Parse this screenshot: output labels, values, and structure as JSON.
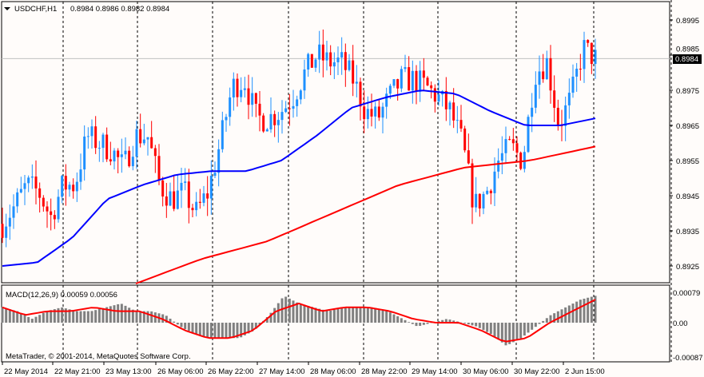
{
  "header": {
    "symbol": "USDCHF,H1",
    "ohlc": "0.8984 0.8986 0.8982 0.8984"
  },
  "macd_label": "MACD(12,26,9) 0.00059 0.00056",
  "copyright": "MetaTrader, © 2001-2014, MetaQuotes Software Corp.",
  "current_price": "0.8984",
  "colors": {
    "bull": "#1e90ff",
    "bear": "#ff0000",
    "ma_fast": "#0000ff",
    "ma_slow": "#ff0000",
    "hist": "#808080"
  },
  "chart_data": [
    {
      "type": "candlestick",
      "title": "USDCHF,H1",
      "ylim": [
        0.8917,
        0.9
      ],
      "yticks": [
        "0.8995",
        "0.8985",
        "0.8975",
        "0.8965",
        "0.8955",
        "0.8945",
        "0.8935",
        "0.8925"
      ],
      "xticks": [
        "22 May 2014",
        "22 May 21:00",
        "23 May 13:00",
        "26 May 06:00",
        "26 May 22:00",
        "27 May 14:00",
        "28 May 06:00",
        "28 May 22:00",
        "29 May 14:00",
        "30 May 06:00",
        "30 May 22:00",
        "2 Jun 15:00"
      ],
      "closes": [
        0.8937,
        0.8942,
        0.8948,
        0.8946,
        0.8939,
        0.8948,
        0.8948,
        0.8962,
        0.896,
        0.8958,
        0.8953,
        0.8962,
        0.8962,
        0.8948,
        0.8944,
        0.8946,
        0.894,
        0.8946,
        0.896,
        0.8976,
        0.8978,
        0.8967,
        0.8967,
        0.8969,
        0.8973,
        0.898,
        0.8985,
        0.8983,
        0.8983,
        0.8978,
        0.8969,
        0.8967,
        0.8973,
        0.8978,
        0.8978,
        0.8976,
        0.8973,
        0.8969,
        0.896,
        0.8942,
        0.8946,
        0.8955,
        0.8959,
        0.8955,
        0.898,
        0.8983,
        0.8965,
        0.8973,
        0.8987,
        0.8984
      ],
      "ma_fast": [
        0.8925,
        0.8926,
        0.8933,
        0.8944,
        0.8948,
        0.8951,
        0.8952,
        0.8952,
        0.8955,
        0.8962,
        0.897,
        0.8973,
        0.8975,
        0.8974,
        0.8969,
        0.8965,
        0.8965,
        0.8967
      ],
      "ma_slow": [
        0.892,
        0.8927,
        0.8932,
        0.894,
        0.8948,
        0.8953,
        0.8955,
        0.8959
      ]
    },
    {
      "type": "bar",
      "title": "MACD(12,26,9)",
      "ylim": [
        -0.00087,
        0.00079
      ],
      "yticks": [
        "0.00079",
        "0.00",
        "-0.00087"
      ],
      "histogram": [
        0.0004,
        0.0003,
        0.0001,
        0.0003,
        0.0004,
        0.0003,
        0.0003,
        0.0004,
        0.0005,
        0.0003,
        0.0003,
        0.0002,
        -0.0001,
        -0.0003,
        -0.0004,
        -0.0004,
        -0.0004,
        -0.0002,
        0.0002,
        0.0007,
        0.0005,
        0.0004,
        0.0003,
        0.0004,
        0.0004,
        0.0004,
        0.0003,
        0.0001,
        -0.0001,
        0.0,
        0.0001,
        0.0,
        -0.0001,
        -0.0003,
        -0.0006,
        -0.0004,
        -0.0001,
        0.0002,
        0.0004,
        0.0006,
        0.0007
      ],
      "signal": [
        0.0004,
        0.0002,
        0.0003,
        0.0003,
        0.0004,
        0.0003,
        0.0003,
        0.0001,
        -0.0002,
        -0.0004,
        -0.0004,
        -0.0002,
        0.0003,
        0.0005,
        0.0003,
        0.0004,
        0.0004,
        0.0003,
        0.0001,
        0.0,
        0.0,
        -0.0002,
        -0.0005,
        -0.0004,
        0.0,
        0.0003,
        0.0006
      ]
    }
  ]
}
